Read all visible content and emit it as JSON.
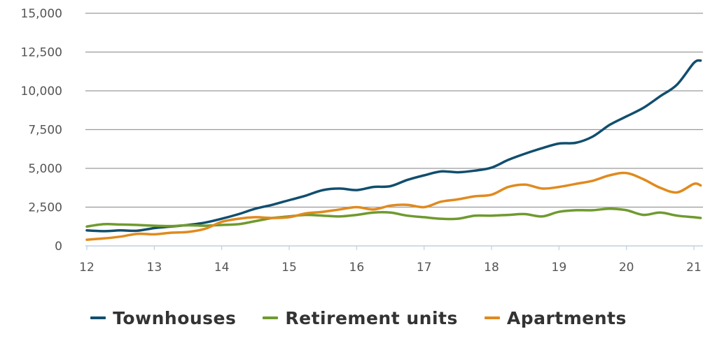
{
  "chart_data": {
    "type": "line",
    "ylim": [
      0,
      15000
    ],
    "xlim": [
      12,
      21.15
    ],
    "y_ticks": [
      {
        "value": 0,
        "label": "0"
      },
      {
        "value": 2500,
        "label": "2,500"
      },
      {
        "value": 5000,
        "label": "5,000"
      },
      {
        "value": 7500,
        "label": "7,500"
      },
      {
        "value": 10000,
        "label": "10,000"
      },
      {
        "value": 12500,
        "label": "12,500"
      },
      {
        "value": 15000,
        "label": "15,000"
      }
    ],
    "x_ticks": [
      {
        "value": 12,
        "label": "12"
      },
      {
        "value": 13,
        "label": "13"
      },
      {
        "value": 14,
        "label": "14"
      },
      {
        "value": 15,
        "label": "15"
      },
      {
        "value": 16,
        "label": "16"
      },
      {
        "value": 17,
        "label": "17"
      },
      {
        "value": 18,
        "label": "18"
      },
      {
        "value": 19,
        "label": "19"
      },
      {
        "value": 20,
        "label": "20"
      },
      {
        "value": 21,
        "label": "21"
      }
    ],
    "grid": true,
    "legend_position": "bottom",
    "series": [
      {
        "name": "Townhouses",
        "color": "#114e6e",
        "x": [
          12.0,
          12.25,
          12.5,
          12.75,
          13.0,
          13.25,
          13.5,
          13.75,
          14.0,
          14.25,
          14.5,
          14.75,
          15.0,
          15.25,
          15.5,
          15.75,
          16.0,
          16.25,
          16.5,
          16.75,
          17.0,
          17.25,
          17.5,
          17.75,
          18.0,
          18.25,
          18.5,
          18.75,
          19.0,
          19.25,
          19.5,
          19.75,
          20.0,
          20.25,
          20.5,
          20.75,
          21.0,
          21.1
        ],
        "y": [
          1000,
          950,
          1000,
          980,
          1150,
          1250,
          1350,
          1500,
          1750,
          2050,
          2400,
          2650,
          2950,
          3250,
          3600,
          3700,
          3600,
          3800,
          3850,
          4250,
          4550,
          4800,
          4750,
          4850,
          5050,
          5550,
          5950,
          6300,
          6600,
          6650,
          7050,
          7800,
          8350,
          8900,
          9650,
          10400,
          11800,
          11950
        ]
      },
      {
        "name": "Retirement units",
        "color": "#6f9a2e",
        "x": [
          12.0,
          12.25,
          12.5,
          12.75,
          13.0,
          13.25,
          13.5,
          13.75,
          14.0,
          14.25,
          14.5,
          14.75,
          15.0,
          15.25,
          15.5,
          15.75,
          16.0,
          16.25,
          16.5,
          16.75,
          17.0,
          17.25,
          17.5,
          17.75,
          18.0,
          18.25,
          18.5,
          18.75,
          19.0,
          19.25,
          19.5,
          19.75,
          20.0,
          20.25,
          20.5,
          20.75,
          21.0,
          21.1
        ],
        "y": [
          1250,
          1400,
          1380,
          1350,
          1300,
          1280,
          1330,
          1300,
          1350,
          1400,
          1600,
          1800,
          1900,
          2000,
          1950,
          1900,
          2000,
          2150,
          2150,
          1950,
          1850,
          1750,
          1750,
          1950,
          1950,
          2000,
          2050,
          1900,
          2200,
          2300,
          2300,
          2400,
          2300,
          2000,
          2150,
          1950,
          1850,
          1800
        ]
      },
      {
        "name": "Apartments",
        "color": "#e08a1e",
        "x": [
          12.0,
          12.25,
          12.5,
          12.75,
          13.0,
          13.25,
          13.5,
          13.75,
          14.0,
          14.25,
          14.5,
          14.75,
          15.0,
          15.25,
          15.5,
          15.75,
          16.0,
          16.25,
          16.5,
          16.75,
          17.0,
          17.25,
          17.5,
          17.75,
          18.0,
          18.25,
          18.5,
          18.75,
          19.0,
          19.25,
          19.5,
          19.75,
          20.0,
          20.25,
          20.5,
          20.75,
          21.0,
          21.1
        ],
        "y": [
          400,
          480,
          600,
          780,
          750,
          850,
          900,
          1100,
          1550,
          1750,
          1850,
          1800,
          1850,
          2100,
          2200,
          2350,
          2500,
          2350,
          2600,
          2650,
          2500,
          2850,
          3000,
          3200,
          3300,
          3800,
          3950,
          3700,
          3800,
          4000,
          4200,
          4550,
          4700,
          4300,
          3750,
          3450,
          4000,
          3900
        ]
      }
    ]
  }
}
